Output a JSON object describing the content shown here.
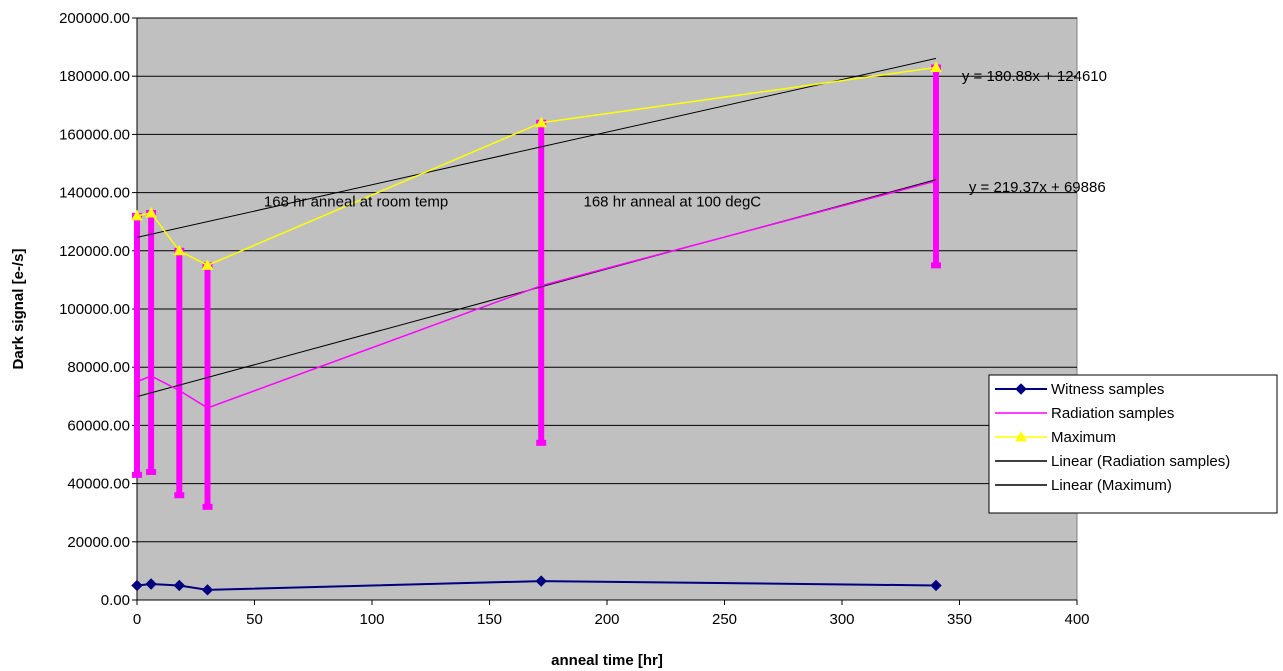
{
  "chart_data": {
    "type": "line",
    "title": "",
    "xlabel": "anneal time [hr]",
    "ylabel": "Dark signal [e-/s]",
    "xlim": [
      0,
      400
    ],
    "ylim": [
      0,
      200000
    ],
    "x_ticks": [
      0,
      50,
      100,
      150,
      200,
      250,
      300,
      350,
      400
    ],
    "x_tick_labels": [
      "0",
      "50",
      "100",
      "150",
      "200",
      "250",
      "300",
      "350",
      "400"
    ],
    "y_ticks": [
      0,
      20000,
      40000,
      60000,
      80000,
      100000,
      120000,
      140000,
      160000,
      180000,
      200000
    ],
    "y_tick_labels": [
      "0.00",
      "20000.00",
      "40000.00",
      "60000.00",
      "80000.00",
      "100000.00",
      "120000.00",
      "140000.00",
      "160000.00",
      "180000.00",
      "200000.00"
    ],
    "grid": "horizontal",
    "plot_background": "#c0c0c0",
    "legend_position": "right",
    "series": [
      {
        "name": "Witness samples",
        "color": "#000080",
        "marker": "diamond",
        "x": [
          0,
          6,
          18,
          30,
          172,
          340
        ],
        "y": [
          5000,
          5500,
          5000,
          3500,
          6500,
          5000
        ]
      },
      {
        "name": "Radiation samples",
        "color": "#ff00ff",
        "marker": "none",
        "x": [
          0,
          6,
          18,
          30,
          172,
          340
        ],
        "y": [
          75000,
          77000,
          72000,
          66000,
          108000,
          144000
        ],
        "error_bars_low": [
          43000,
          44000,
          36000,
          32000,
          54000,
          115000
        ],
        "error_bars_high": [
          132000,
          133000,
          120000,
          115000,
          164000,
          183000
        ]
      },
      {
        "name": "Maximum",
        "color": "#ffff00",
        "marker": "triangle",
        "x": [
          0,
          6,
          18,
          30,
          172,
          340
        ],
        "y": [
          132000,
          133000,
          120000,
          115000,
          164000,
          183000
        ]
      },
      {
        "name": "Linear (Radiation samples)",
        "color": "#000000",
        "marker": "none",
        "x": [
          0,
          340
        ],
        "y": [
          69886,
          144472
        ]
      },
      {
        "name": "Linear (Maximum)",
        "color": "#000000",
        "marker": "none",
        "x": [
          0,
          340
        ],
        "y": [
          124610,
          186109
        ]
      }
    ],
    "annotations": [
      {
        "text": "y = 180.88x + 124610",
        "x": 351,
        "y": 180000
      },
      {
        "text": "y = 219.37x + 69886",
        "x": 354,
        "y": 142000
      },
      {
        "text": "168 hr anneal at room temp",
        "x": 54,
        "y": 137000
      },
      {
        "text": "168 hr anneal at 100 degC",
        "x": 190,
        "y": 137000
      }
    ]
  }
}
